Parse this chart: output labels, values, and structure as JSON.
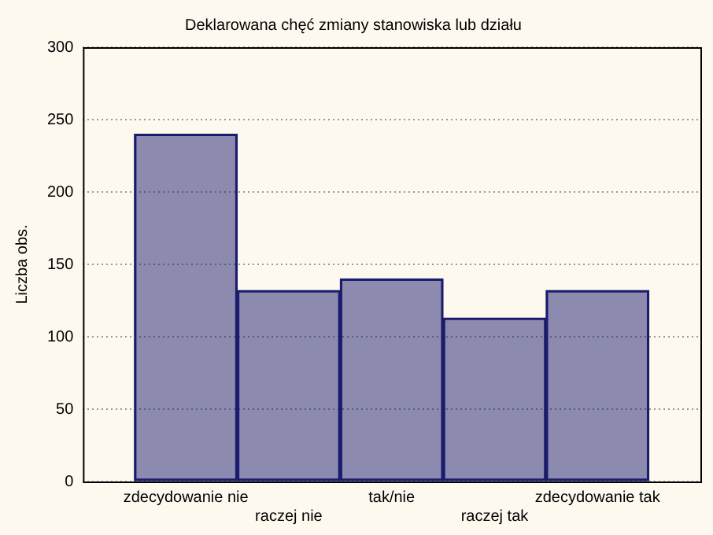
{
  "chart_data": {
    "type": "bar",
    "title": "Deklarowana chęć zmiany stanowiska lub działu",
    "ylabel": "Liczba obs.",
    "categories": [
      "zdecydowanie nie",
      "raczej nie",
      "tak/nie",
      "raczej tak",
      "zdecydowanie tak"
    ],
    "values": [
      240,
      132,
      140,
      113,
      132
    ],
    "color": "#1c1c6e",
    "ylim": [
      0,
      300
    ],
    "yticks": [
      0,
      50,
      100,
      150,
      200,
      250,
      300
    ],
    "grid": "y",
    "legend": false
  }
}
